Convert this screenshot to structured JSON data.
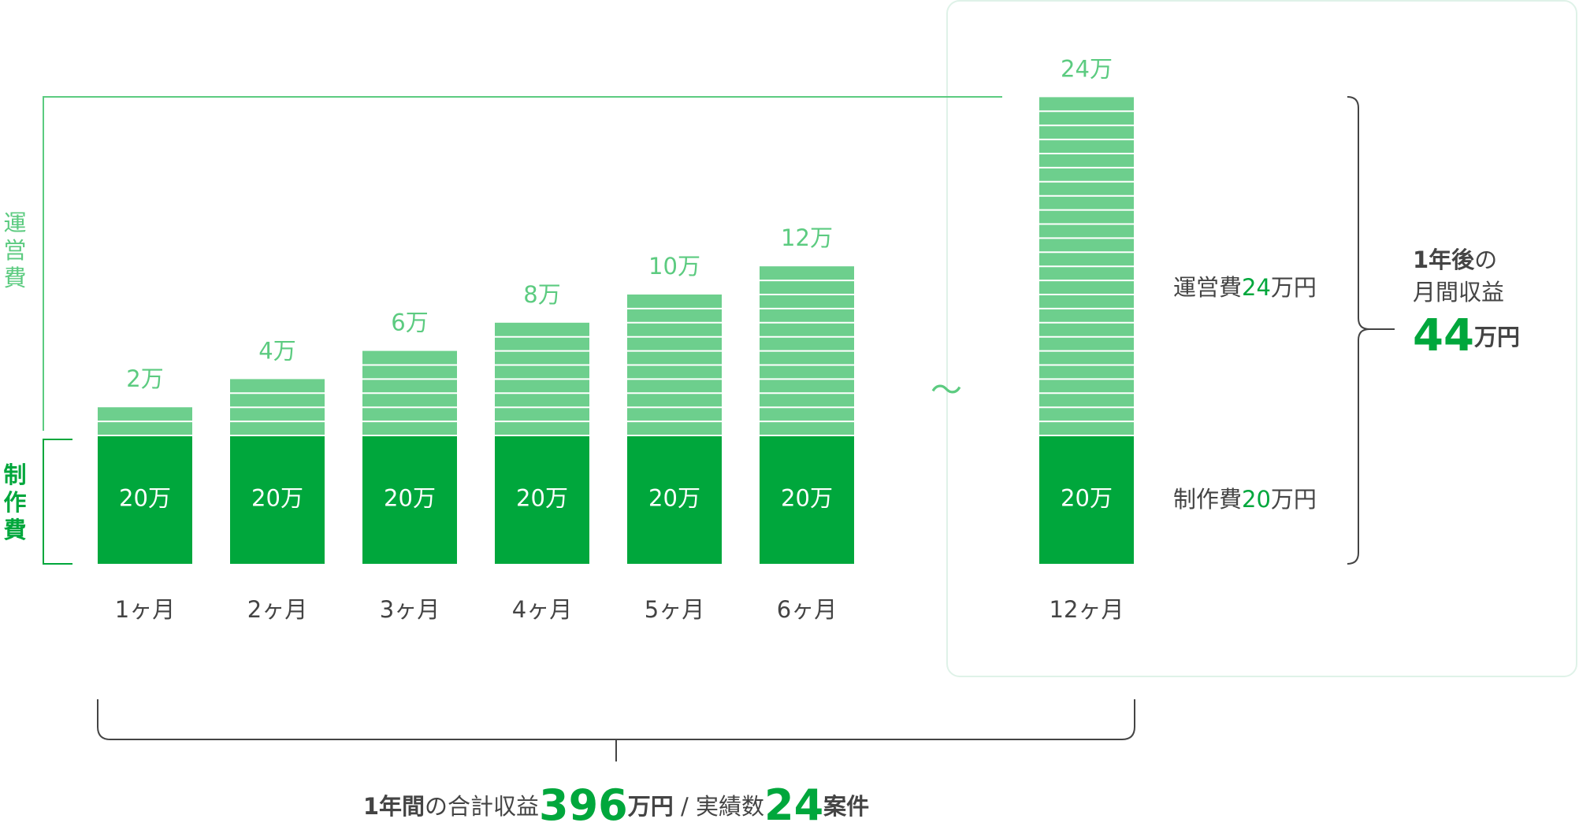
{
  "chart_data": {
    "type": "bar",
    "stacked": true,
    "categories": [
      "1ヶ月",
      "2ヶ月",
      "3ヶ月",
      "4ヶ月",
      "5ヶ月",
      "6ヶ月",
      "12ヶ月"
    ],
    "series": [
      {
        "name": "制作費",
        "color": "#00a73c",
        "values": [
          20,
          20,
          20,
          20,
          20,
          20,
          20
        ],
        "value_labels": [
          "20万",
          "20万",
          "20万",
          "20万",
          "20万",
          "20万",
          "20万"
        ]
      },
      {
        "name": "運営費",
        "color": "#6dcf8d",
        "values": [
          2,
          4,
          6,
          8,
          10,
          12,
          24
        ],
        "value_labels": [
          "2万",
          "4万",
          "6万",
          "8万",
          "10万",
          "12万",
          "24万"
        ]
      }
    ],
    "break_mark": "〜",
    "annotations": {
      "operating": [
        "運営費",
        "24",
        "万円"
      ],
      "production": [
        "制作費",
        "20",
        "万円"
      ],
      "monthly": {
        "lines": [
          [
            "1年後",
            "の"
          ],
          [
            "月間収益"
          ]
        ],
        "amount": "44",
        "unit": "万円"
      },
      "yearly": {
        "parts": [
          "1年間",
          "の合計収益",
          "396",
          "万円",
          " / 実績数",
          "24",
          "案件"
        ]
      }
    }
  }
}
